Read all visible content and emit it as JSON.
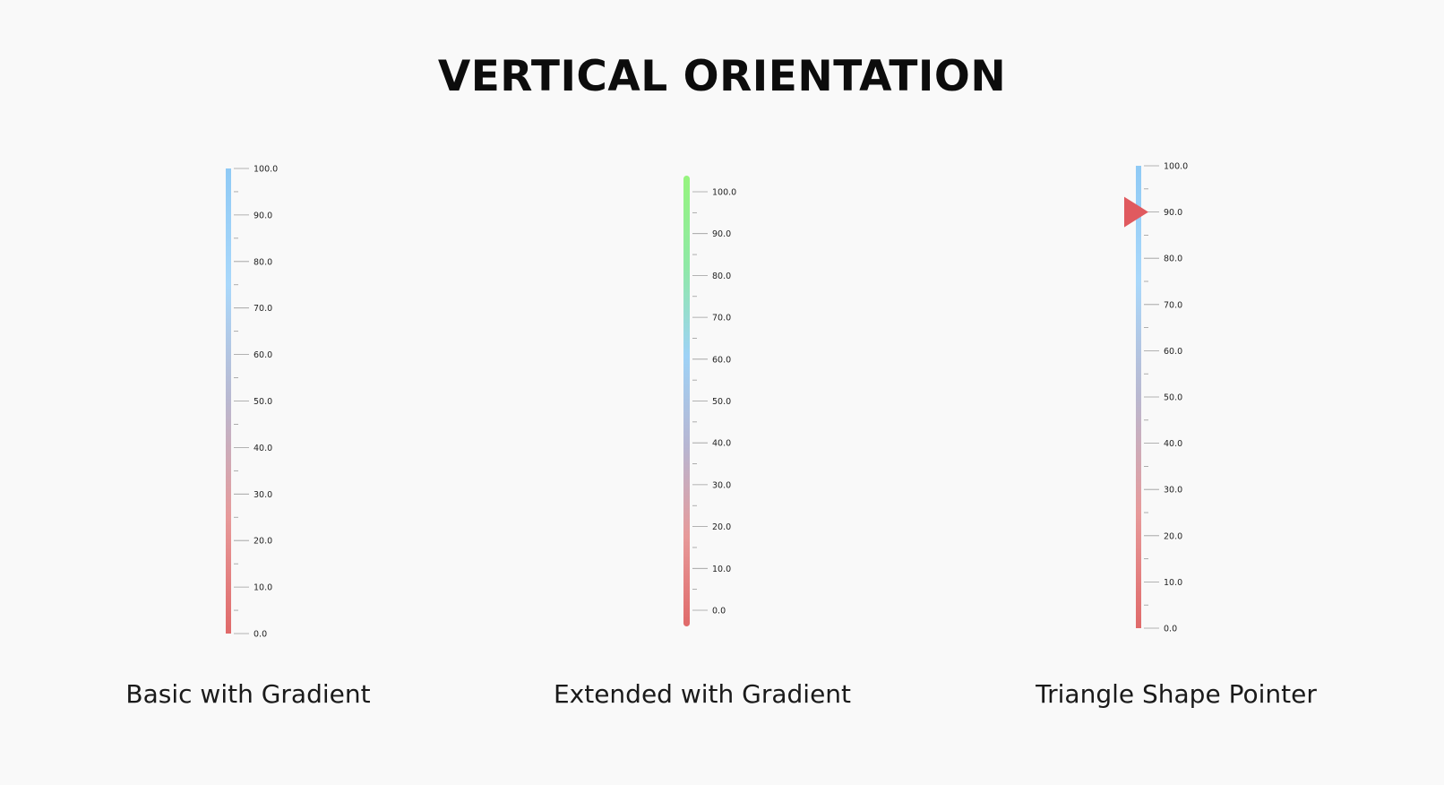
{
  "page_title": "VERTICAL ORIENTATION",
  "gauges": [
    {
      "caption": "Basic with Gradient",
      "min": 0,
      "max": 100,
      "major_step": 10,
      "tick_labels": [
        "0.0",
        "10.0",
        "20.0",
        "30.0",
        "40.0",
        "50.0",
        "60.0",
        "70.0",
        "80.0",
        "90.0",
        "100.0"
      ],
      "gradient": [
        "#e06a6a",
        "#e79a9a",
        "#b9b8d0",
        "#a9d8fb",
        "#8fcaf5"
      ],
      "bar_style": "square",
      "pointer": null
    },
    {
      "caption": "Extended with Gradient",
      "min": 0,
      "max": 100,
      "major_step": 10,
      "tick_labels": [
        "0.0",
        "10.0",
        "20.0",
        "30.0",
        "40.0",
        "50.0",
        "60.0",
        "70.0",
        "80.0",
        "90.0",
        "100.0"
      ],
      "gradient": [
        "#e06a6a",
        "#e79a9a",
        "#b7b6d2",
        "#9ed2f6",
        "#8fe9a6",
        "#96f47e"
      ],
      "bar_style": "rounded-extended",
      "pointer": null
    },
    {
      "caption": "Triangle Shape Pointer",
      "min": 0,
      "max": 100,
      "major_step": 10,
      "tick_labels": [
        "0.0",
        "10.0",
        "20.0",
        "30.0",
        "40.0",
        "50.0",
        "60.0",
        "70.0",
        "80.0",
        "90.0",
        "100.0"
      ],
      "gradient": [
        "#e06a6a",
        "#e79a9a",
        "#b9b8d0",
        "#a9d8fb",
        "#8fcaf5"
      ],
      "bar_style": "square",
      "pointer": {
        "shape": "triangle-icon",
        "value": 90,
        "color": "#e05a5f"
      }
    }
  ],
  "colors": {
    "background": "#f9f9f9",
    "tick": "#9a9a9a",
    "label": "#222222"
  }
}
